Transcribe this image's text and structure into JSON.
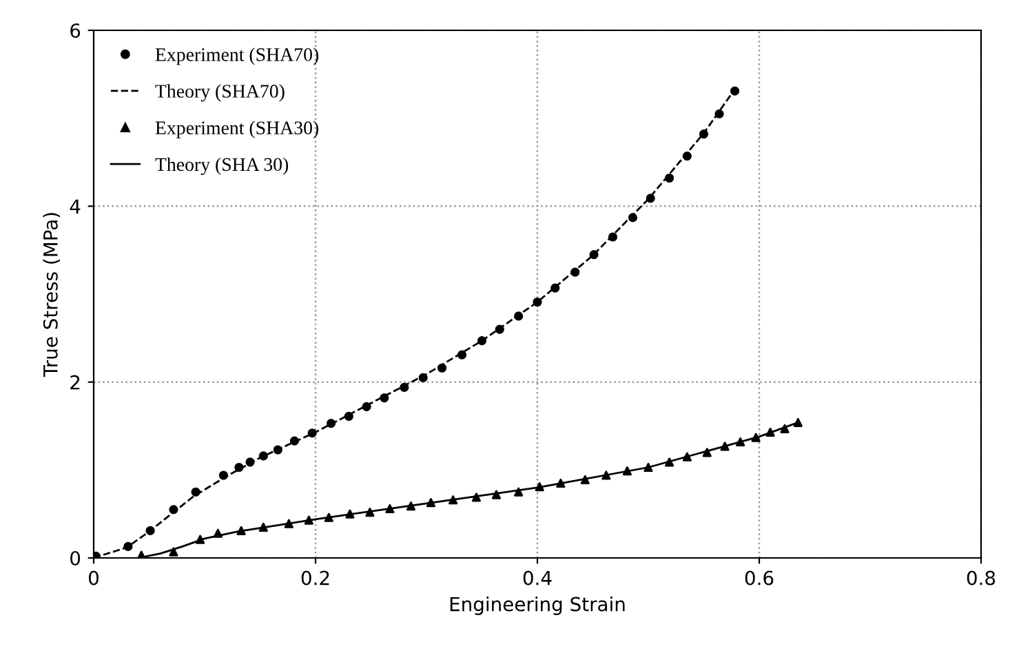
{
  "chart_data": {
    "type": "scatter",
    "xlabel": "Engineering Strain",
    "ylabel": "True Stress (MPa)",
    "xlim": [
      0,
      0.8
    ],
    "xticks": [
      0,
      0.2,
      0.4,
      0.6,
      0.8
    ],
    "ylim": [
      0,
      6
    ],
    "yticks": [
      0,
      2,
      4,
      6
    ],
    "grid": true,
    "legend": "top left",
    "series": [
      {
        "name": "Experiment (SHA70)",
        "marker": "circle",
        "color": "#000000",
        "x": [
          0.002,
          0.031,
          0.051,
          0.072,
          0.092,
          0.117,
          0.131,
          0.141,
          0.153,
          0.166,
          0.181,
          0.197,
          0.214,
          0.23,
          0.246,
          0.262,
          0.28,
          0.297,
          0.314,
          0.332,
          0.35,
          0.366,
          0.383,
          0.4,
          0.416,
          0.434,
          0.451,
          0.468,
          0.486,
          0.502,
          0.519,
          0.535,
          0.55,
          0.564,
          0.578
        ],
        "values": [
          0.02,
          0.13,
          0.31,
          0.55,
          0.75,
          0.94,
          1.03,
          1.09,
          1.16,
          1.23,
          1.33,
          1.42,
          1.53,
          1.61,
          1.72,
          1.82,
          1.94,
          2.05,
          2.16,
          2.31,
          2.47,
          2.6,
          2.75,
          2.91,
          3.07,
          3.25,
          3.45,
          3.65,
          3.87,
          4.09,
          4.32,
          4.57,
          4.82,
          5.05,
          5.31
        ]
      },
      {
        "name": "Theory (SHA70)",
        "type": "line",
        "line_style": "dashed",
        "marker": "none",
        "color": "#000000",
        "x": [
          0,
          0.03,
          0.05,
          0.07,
          0.09,
          0.12,
          0.15,
          0.2,
          0.25,
          0.3,
          0.35,
          0.4,
          0.45,
          0.5,
          0.55,
          0.578
        ],
        "values": [
          0,
          0.12,
          0.3,
          0.5,
          0.7,
          0.93,
          1.14,
          1.43,
          1.76,
          2.09,
          2.47,
          2.91,
          3.44,
          4.08,
          4.83,
          5.33
        ]
      },
      {
        "name": "Experiment (SHA30)",
        "marker": "triangle",
        "color": "#000000",
        "x": [
          0.043,
          0.072,
          0.096,
          0.112,
          0.133,
          0.153,
          0.176,
          0.194,
          0.212,
          0.231,
          0.249,
          0.267,
          0.286,
          0.304,
          0.324,
          0.345,
          0.363,
          0.383,
          0.402,
          0.421,
          0.443,
          0.462,
          0.481,
          0.5,
          0.519,
          0.535,
          0.553,
          0.569,
          0.583,
          0.597,
          0.61,
          0.623,
          0.635
        ],
        "values": [
          0.03,
          0.07,
          0.21,
          0.28,
          0.31,
          0.35,
          0.39,
          0.43,
          0.46,
          0.5,
          0.52,
          0.56,
          0.59,
          0.63,
          0.66,
          0.69,
          0.72,
          0.75,
          0.81,
          0.85,
          0.89,
          0.94,
          0.99,
          1.03,
          1.09,
          1.15,
          1.2,
          1.27,
          1.32,
          1.37,
          1.43,
          1.47,
          1.54
        ]
      },
      {
        "name": "Theory (SHA 30)",
        "type": "line",
        "line_style": "solid",
        "marker": "none",
        "color": "#000000",
        "x": [
          0.04,
          0.06,
          0.08,
          0.1,
          0.13,
          0.2,
          0.3,
          0.4,
          0.5,
          0.6,
          0.635
        ],
        "values": [
          0,
          0.05,
          0.13,
          0.22,
          0.3,
          0.44,
          0.62,
          0.8,
          1.03,
          1.38,
          1.54
        ]
      }
    ]
  }
}
